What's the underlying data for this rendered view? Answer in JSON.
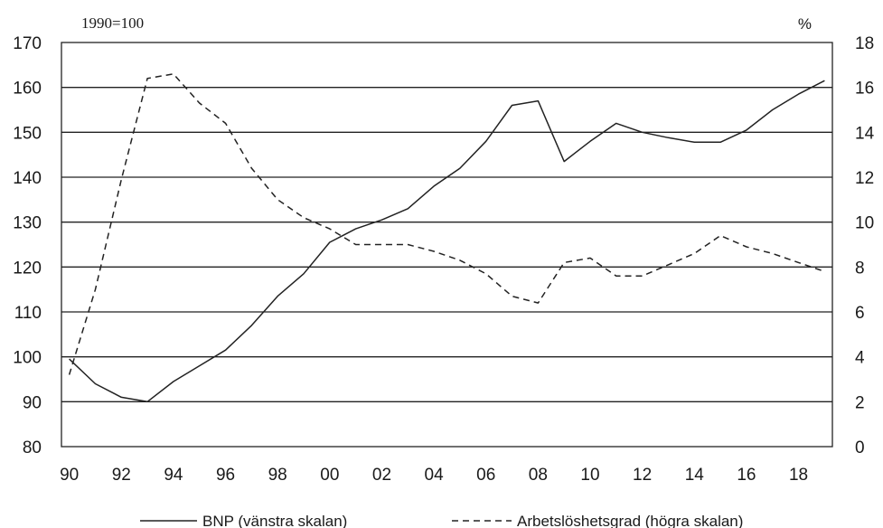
{
  "chart_data": {
    "type": "line",
    "left_axis_caption": "1990=100",
    "right_axis_caption": "%",
    "x_tick_labels": [
      "90",
      "92",
      "94",
      "96",
      "98",
      "00",
      "02",
      "04",
      "06",
      "08",
      "10",
      "12",
      "14",
      "16",
      "18"
    ],
    "x": [
      1990,
      1991,
      1992,
      1993,
      1994,
      1995,
      1996,
      1997,
      1998,
      1999,
      2000,
      2001,
      2002,
      2003,
      2004,
      2005,
      2006,
      2007,
      2008,
      2009,
      2010,
      2011,
      2012,
      2013,
      2014,
      2015,
      2016,
      2017,
      2018,
      2019
    ],
    "ylim_left": [
      80,
      170
    ],
    "yticks_left": [
      80,
      90,
      100,
      110,
      120,
      130,
      140,
      150,
      160,
      170
    ],
    "ylim_right": [
      0,
      18
    ],
    "yticks_right": [
      0,
      2,
      4,
      6,
      8,
      10,
      12,
      14,
      16,
      18
    ],
    "grid": "horizontal",
    "legend_position": "bottom",
    "series": [
      {
        "name": "BNP (vänstra skalan)",
        "axis": "left",
        "style": "solid",
        "values": [
          99.5,
          94,
          91,
          90,
          94.5,
          98,
          101.5,
          107,
          113.5,
          118.5,
          125.5,
          128.5,
          130.5,
          133,
          138,
          142,
          148,
          156,
          157,
          143.5,
          148,
          152,
          150,
          148.8,
          147.8,
          147.8,
          150.5,
          155,
          158.5,
          161.5
        ]
      },
      {
        "name": "Arbetslöshetsgrad (högra skalan)",
        "axis": "right",
        "style": "dashed",
        "values": [
          3.2,
          7.0,
          11.9,
          16.4,
          16.6,
          15.3,
          14.4,
          12.4,
          11.0,
          10.2,
          9.7,
          9.0,
          9.0,
          9.0,
          8.7,
          8.3,
          7.7,
          6.7,
          6.4,
          8.2,
          8.4,
          7.6,
          7.6,
          8.1,
          8.6,
          9.4,
          8.9,
          8.6,
          8.2,
          7.8
        ]
      }
    ]
  }
}
